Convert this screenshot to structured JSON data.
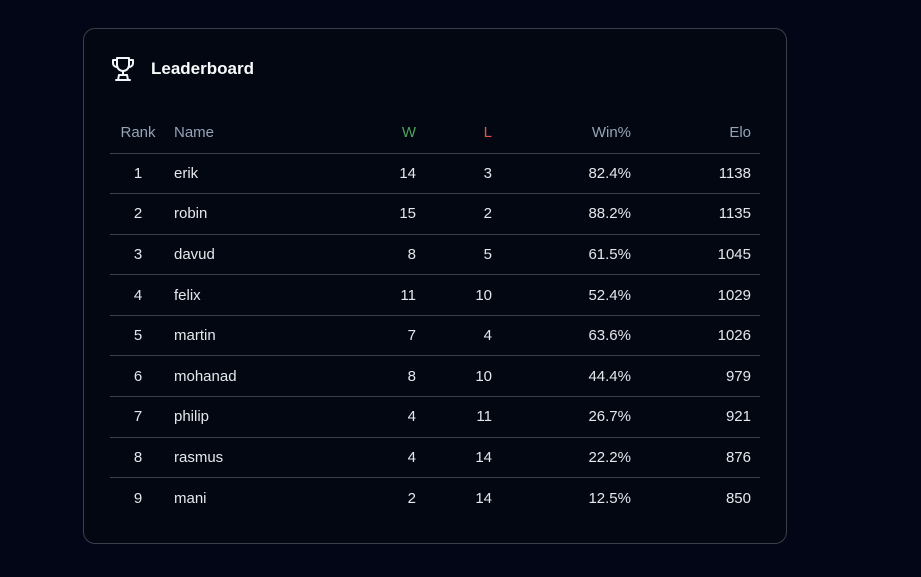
{
  "leaderboard": {
    "title": "Leaderboard",
    "icon": "trophy-icon",
    "columns": {
      "rank": "Rank",
      "name": "Name",
      "w": "W",
      "l": "L",
      "win_pct": "Win%",
      "elo": "Elo"
    },
    "colors": {
      "w_header": "#4ca35a",
      "l_header": "#e2554f"
    },
    "rows": [
      {
        "rank": "1",
        "name": "erik",
        "w": "14",
        "l": "3",
        "win_pct": "82.4%",
        "elo": "1138"
      },
      {
        "rank": "2",
        "name": "robin",
        "w": "15",
        "l": "2",
        "win_pct": "88.2%",
        "elo": "1135"
      },
      {
        "rank": "3",
        "name": "davud",
        "w": "8",
        "l": "5",
        "win_pct": "61.5%",
        "elo": "1045"
      },
      {
        "rank": "4",
        "name": "felix",
        "w": "11",
        "l": "10",
        "win_pct": "52.4%",
        "elo": "1029"
      },
      {
        "rank": "5",
        "name": "martin",
        "w": "7",
        "l": "4",
        "win_pct": "63.6%",
        "elo": "1026"
      },
      {
        "rank": "6",
        "name": "mohanad",
        "w": "8",
        "l": "10",
        "win_pct": "44.4%",
        "elo": "979"
      },
      {
        "rank": "7",
        "name": "philip",
        "w": "4",
        "l": "11",
        "win_pct": "26.7%",
        "elo": "921"
      },
      {
        "rank": "8",
        "name": "rasmus",
        "w": "4",
        "l": "14",
        "win_pct": "22.2%",
        "elo": "876"
      },
      {
        "rank": "9",
        "name": "mani",
        "w": "2",
        "l": "14",
        "win_pct": "12.5%",
        "elo": "850"
      }
    ]
  }
}
